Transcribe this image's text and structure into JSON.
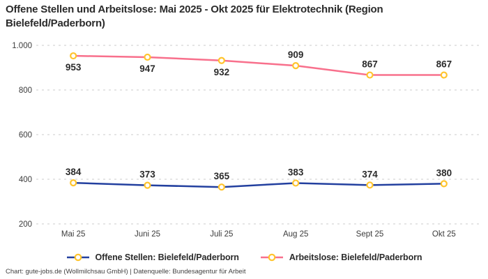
{
  "title": "Offene Stellen und Arbeitslose: Mai 2025 - Okt 2025 für Elektrotechnik (Region Bielefeld/Paderborn)",
  "footer": {
    "text": "Chart: gute-jobs.de (Wollmilchsau GmbH) | Datenquelle: Bundesagentur für Arbeit"
  },
  "colors": {
    "offene_stellen_line": "#23409F",
    "arbeitslose_line": "#F8708C",
    "marker_ring": "#FFC42D",
    "marker_fill": "#FFFFFF",
    "gridline": "#CBCBCB",
    "axis_text": "#3b3b3b",
    "value_label": "#2b2b2b"
  },
  "chart_data": {
    "type": "line",
    "title": "Offene Stellen und Arbeitslose: Mai 2025 - Okt 2025 für Elektrotechnik (Region Bielefeld/Paderborn)",
    "categories": [
      "Mai 25",
      "Juni 25",
      "Juli 25",
      "Aug 25",
      "Sept 25",
      "Okt 25"
    ],
    "series": [
      {
        "name": "Offene Stellen: Bielefeld/Paderborn",
        "values": [
          384,
          373,
          365,
          383,
          374,
          380
        ],
        "color": "#23409F",
        "label_placements": [
          "above",
          "above",
          "above",
          "above",
          "above",
          "above"
        ]
      },
      {
        "name": "Arbeitslose: Bielefeld/Paderborn",
        "values": [
          953,
          947,
          932,
          909,
          867,
          867
        ],
        "color": "#F8708C",
        "label_placements": [
          "below",
          "below",
          "below",
          "above",
          "above",
          "above"
        ]
      }
    ],
    "xlabel": "",
    "ylabel": "",
    "ylim": [
      200,
      1000
    ],
    "yticks": [
      200,
      400,
      600,
      800,
      1000
    ],
    "ytick_labels": [
      "200",
      "400",
      "600",
      "800",
      "1.000"
    ],
    "grid": "dashed horizontal",
    "legend_position": "bottom",
    "marker": "circle, white fill, gold ring"
  }
}
